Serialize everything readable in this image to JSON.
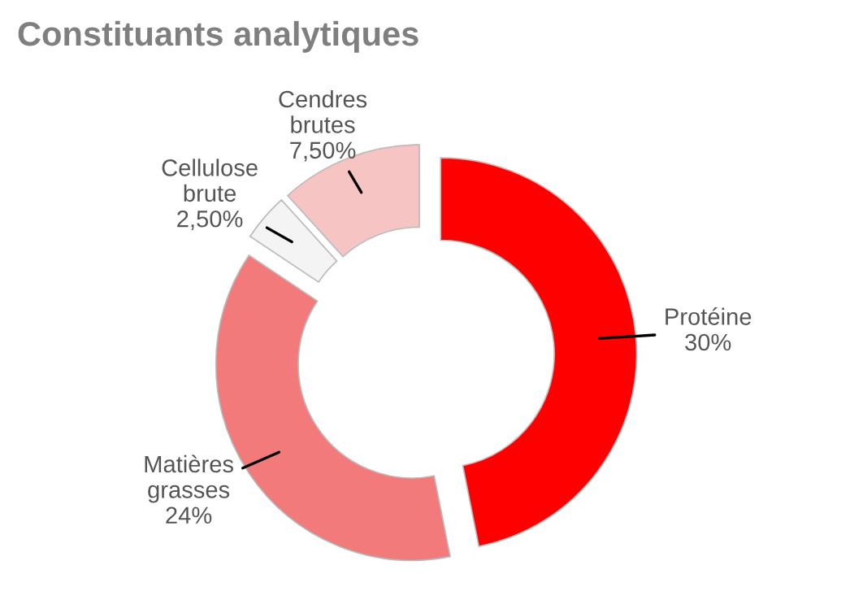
{
  "chart_data": {
    "type": "donut",
    "title": "Constituants analytiques",
    "categories": [
      "Protéine",
      "Matières grasses",
      "Cellulose brute",
      "Cendres brutes"
    ],
    "values": [
      30,
      24,
      2.5,
      7.5
    ],
    "value_labels": [
      "30%",
      "24%",
      "2,50%",
      "7,50%"
    ],
    "colors": [
      "#ff0000",
      "#f27a7a",
      "#f4f4f4",
      "#f7c4c4"
    ],
    "legend": false
  }
}
